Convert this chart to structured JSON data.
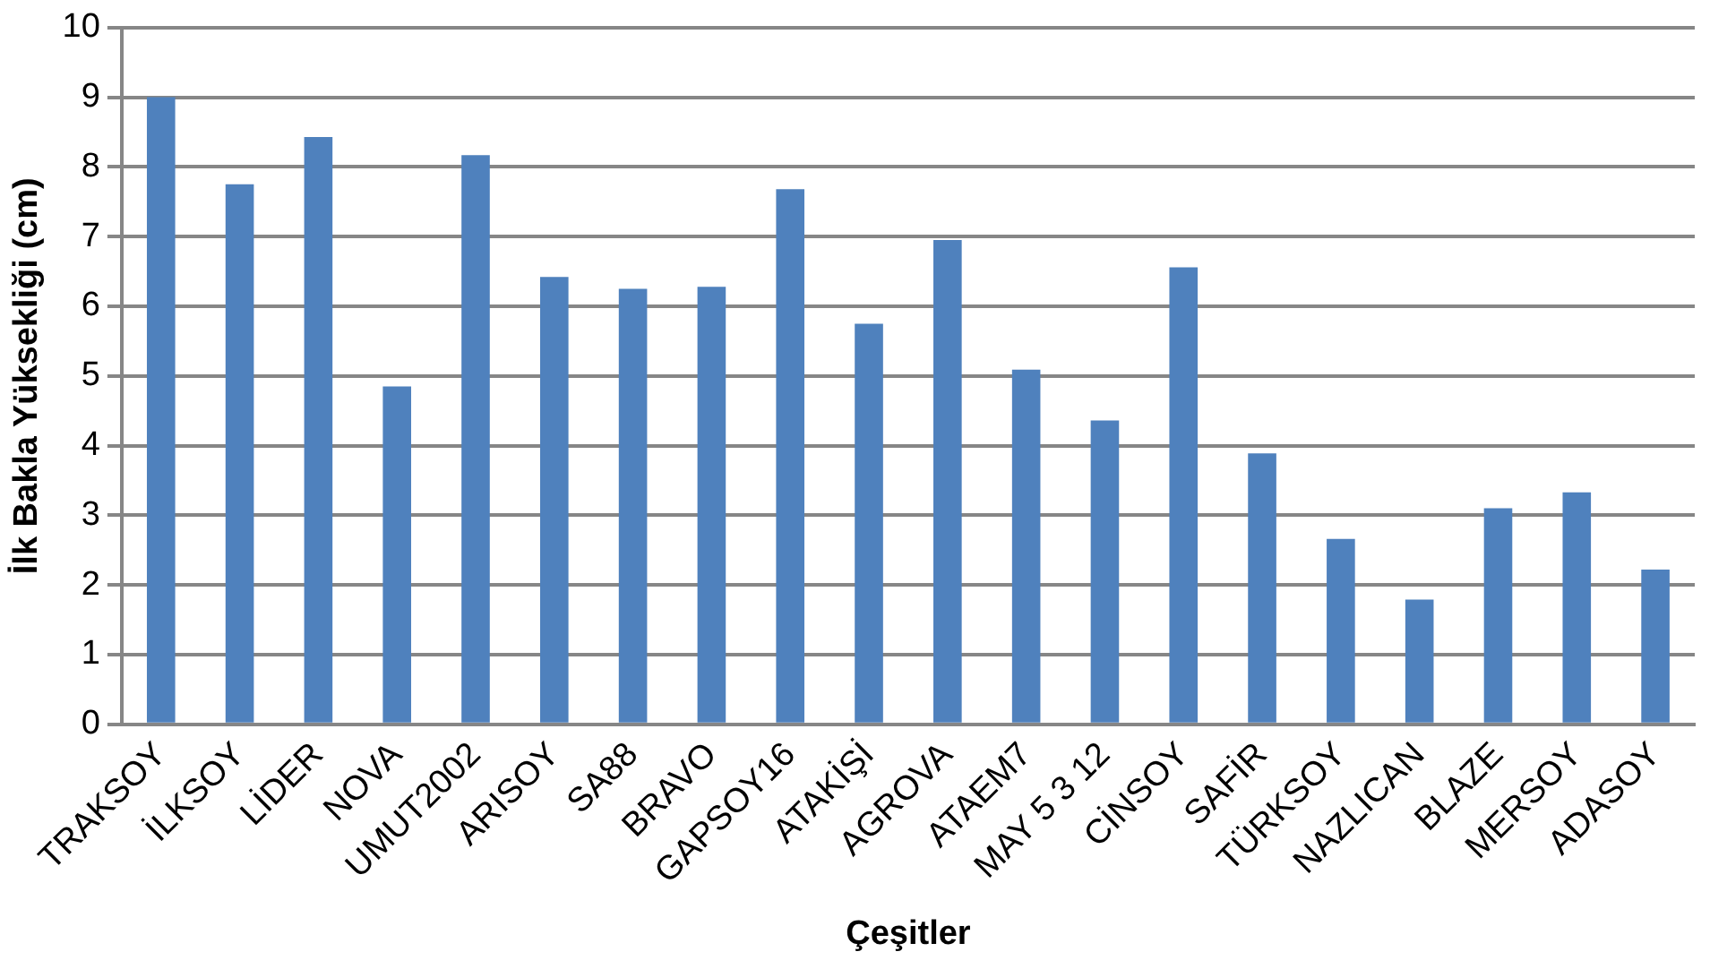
{
  "chart_data": {
    "type": "bar",
    "xlabel": "Çeşitler",
    "ylabel": "İlk Bakla Yüksekliği (cm)",
    "categories": [
      "TRAKSOY",
      "İLKSOY",
      "LİDER",
      "NOVA",
      "UMUT2002",
      "ARISOY",
      "SA88",
      "BRAVO",
      "GAPSOY16",
      "ATAKİŞİ",
      "AGROVA",
      "ATAEM7",
      "MAY 5 3 12",
      "CİNSOY",
      "SAFİR",
      "TÜRKSOY",
      "NAZLICAN",
      "BLAZE",
      "MERSOY",
      "ADASOY"
    ],
    "values": [
      9.0,
      7.75,
      8.43,
      4.85,
      8.17,
      6.42,
      6.25,
      6.28,
      7.68,
      5.75,
      6.95,
      5.09,
      4.36,
      6.56,
      3.89,
      2.66,
      1.79,
      3.1,
      3.33,
      2.22
    ],
    "color": "#4f81bd",
    "ylim": [
      0,
      10
    ],
    "yticks": [
      0,
      1,
      2,
      3,
      4,
      5,
      6,
      7,
      8,
      9,
      10
    ],
    "grid": "y",
    "legend": false
  }
}
